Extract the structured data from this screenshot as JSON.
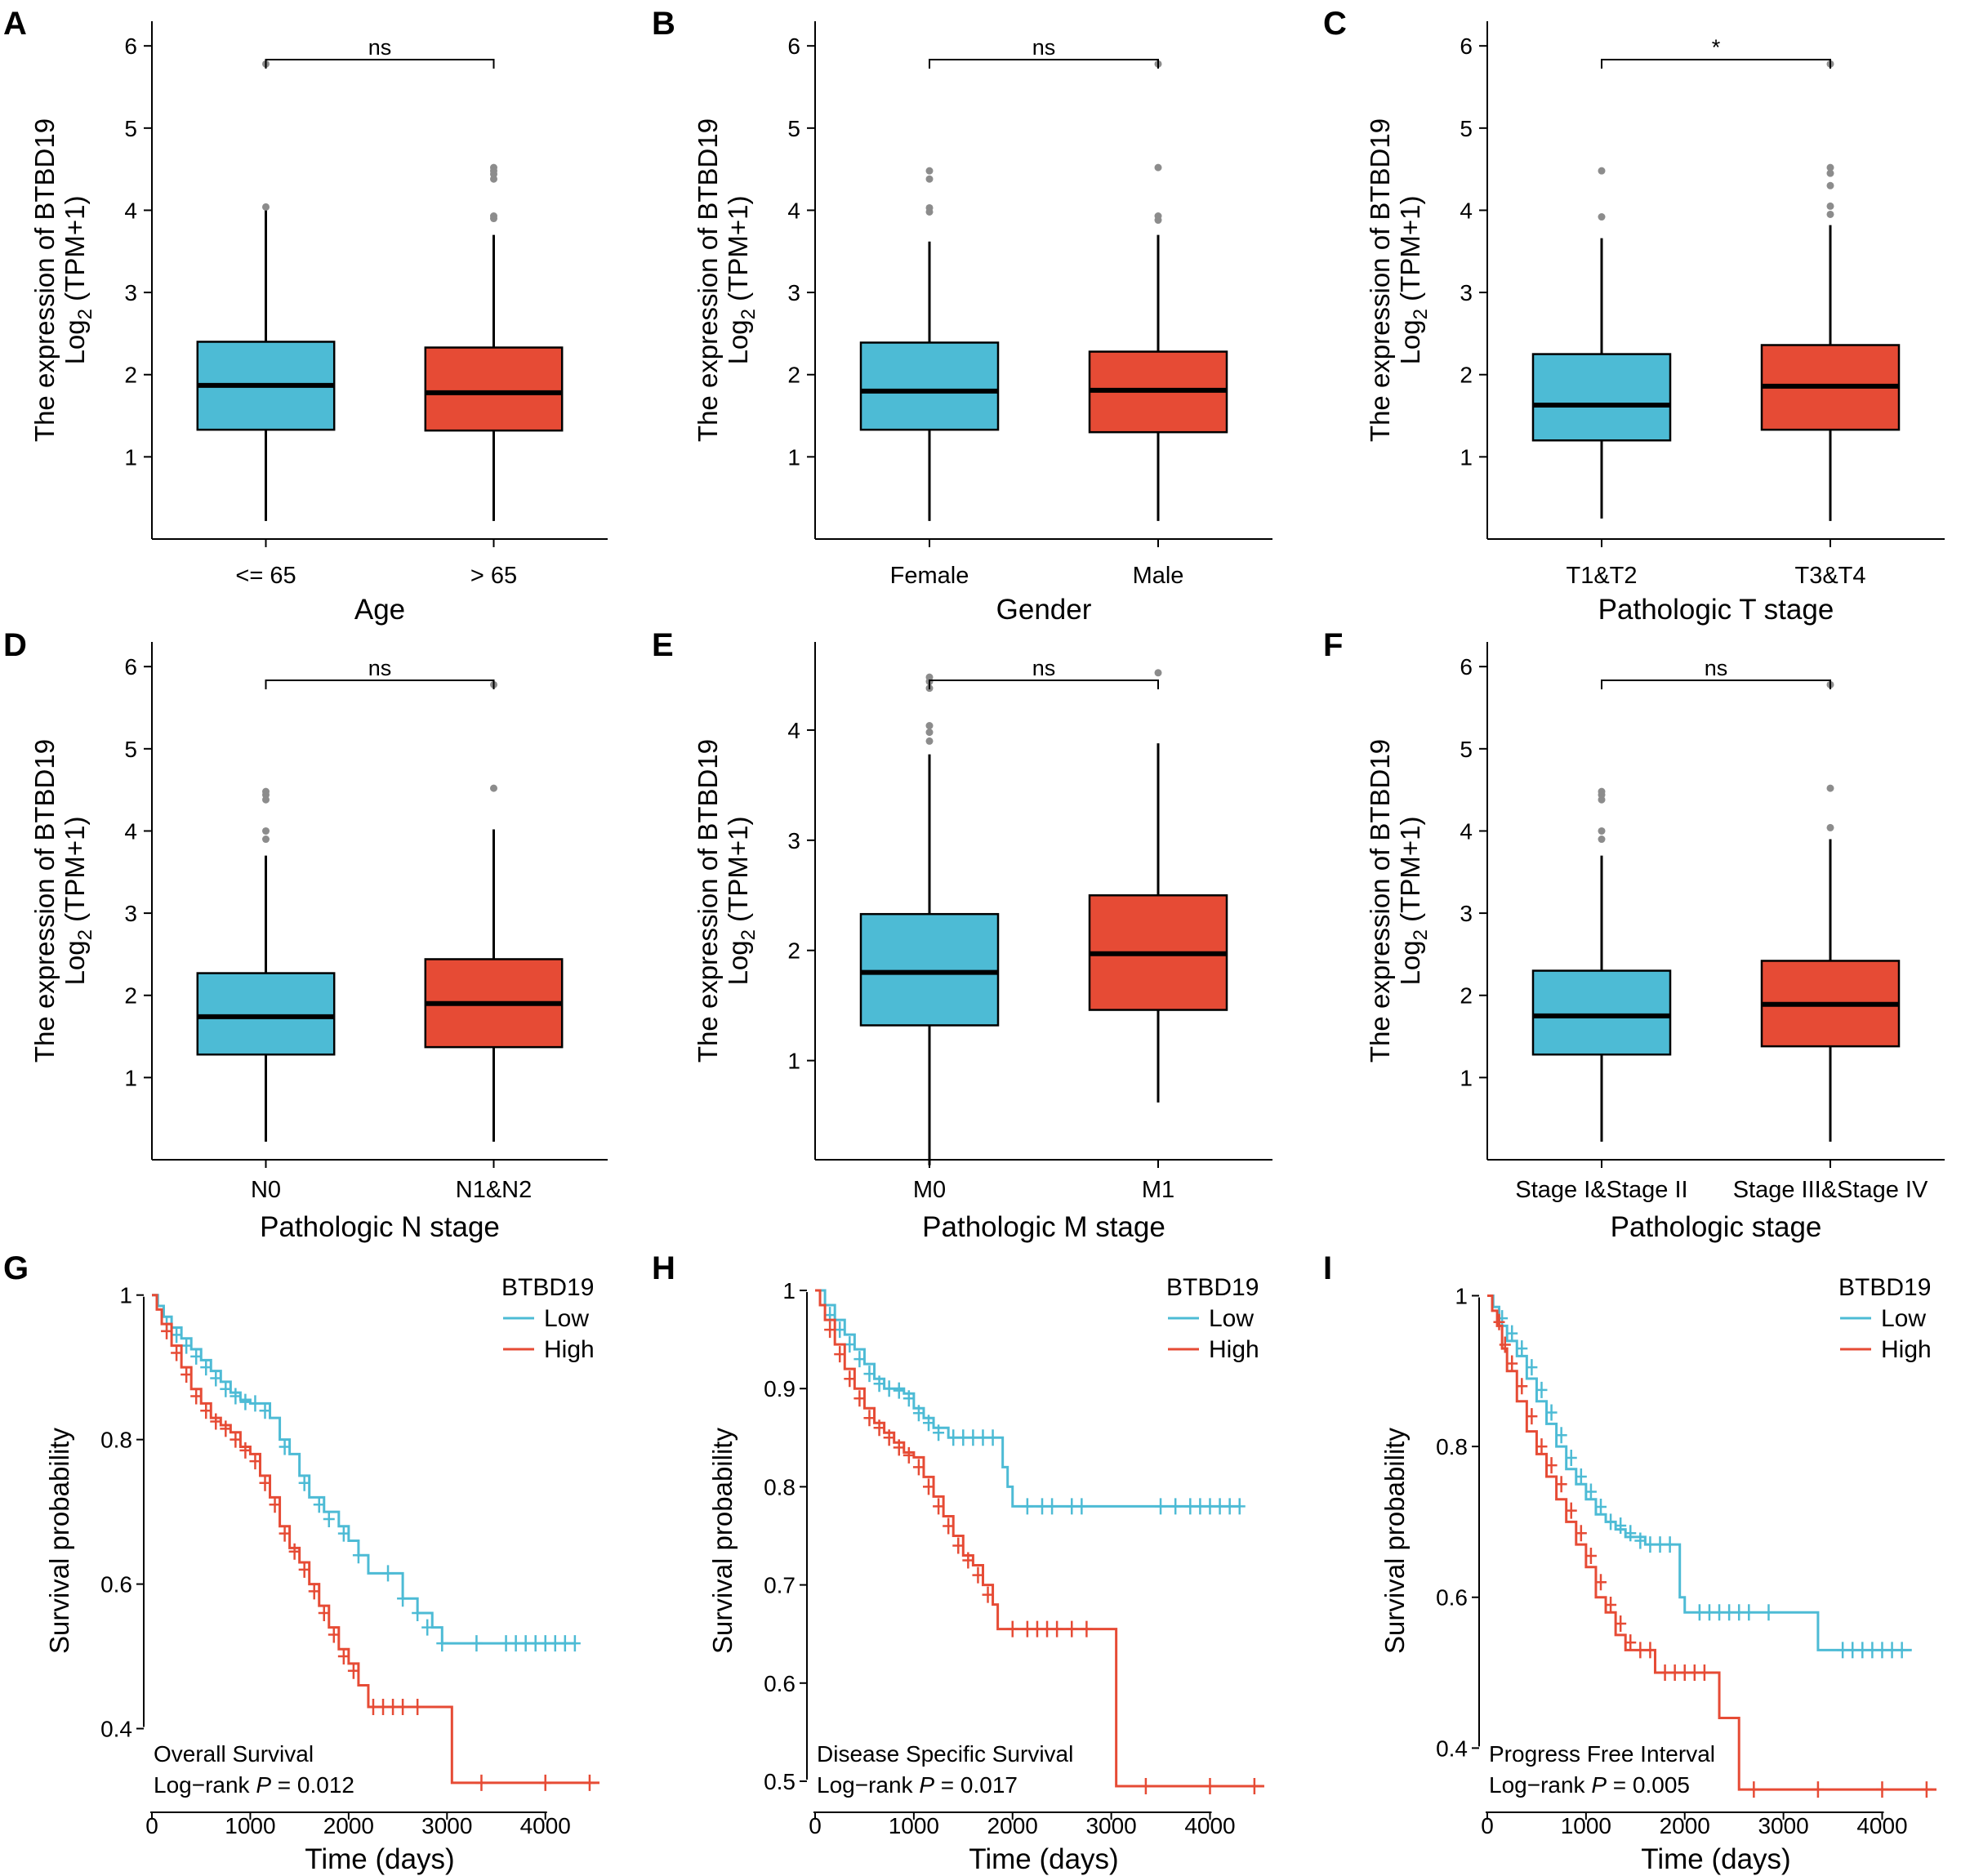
{
  "colors": {
    "low": "#4dbbd5",
    "high": "#e64b35",
    "outlier": "#8c8c8c",
    "axis": "#000000"
  },
  "ylabel_line1": "The expression of BTBD19",
  "ylabel_line2_main": "Log",
  "ylabel_line2_sub": "2",
  "ylabel_line2_rest": " (TPM+1)",
  "chart_data": [
    {
      "id": "A",
      "type": "box",
      "xlabel": "Age",
      "ylim": [
        0,
        6.3
      ],
      "yticks": [
        1,
        2,
        3,
        4,
        5,
        6
      ],
      "sig": "ns",
      "groups": [
        {
          "label": "<= 65",
          "color": "low",
          "min": 0.22,
          "q1": 1.33,
          "median": 1.87,
          "q3": 2.4,
          "max": 4.02,
          "outliers": [
            4.04,
            5.78
          ]
        },
        {
          "label": "> 65",
          "color": "high",
          "min": 0.22,
          "q1": 1.32,
          "median": 1.78,
          "q3": 2.33,
          "max": 3.7,
          "outliers": [
            3.9,
            3.93,
            4.38,
            4.44,
            4.48,
            4.52
          ]
        }
      ]
    },
    {
      "id": "B",
      "type": "box",
      "xlabel": "Gender",
      "ylim": [
        0,
        6.3
      ],
      "yticks": [
        1,
        2,
        3,
        4,
        5,
        6
      ],
      "sig": "ns",
      "groups": [
        {
          "label": "Female",
          "color": "low",
          "min": 0.22,
          "q1": 1.33,
          "median": 1.8,
          "q3": 2.39,
          "max": 3.62,
          "outliers": [
            3.98,
            4.03,
            4.38,
            4.48
          ]
        },
        {
          "label": "Male",
          "color": "high",
          "min": 0.22,
          "q1": 1.3,
          "median": 1.81,
          "q3": 2.28,
          "max": 3.7,
          "outliers": [
            3.88,
            3.93,
            4.52,
            5.78
          ]
        }
      ]
    },
    {
      "id": "C",
      "type": "box",
      "xlabel": "Pathologic T stage",
      "ylim": [
        0,
        6.3
      ],
      "yticks": [
        1,
        2,
        3,
        4,
        5,
        6
      ],
      "sig": "*",
      "groups": [
        {
          "label": "T1&T2",
          "color": "low",
          "min": 0.25,
          "q1": 1.2,
          "median": 1.63,
          "q3": 2.25,
          "max": 3.66,
          "outliers": [
            3.92,
            4.48
          ]
        },
        {
          "label": "T3&T4",
          "color": "high",
          "min": 0.22,
          "q1": 1.33,
          "median": 1.86,
          "q3": 2.36,
          "max": 3.82,
          "outliers": [
            3.95,
            4.05,
            4.3,
            4.45,
            4.52,
            5.78
          ]
        }
      ]
    },
    {
      "id": "D",
      "type": "box",
      "xlabel": "Pathologic N stage",
      "ylim": [
        0,
        6.3
      ],
      "yticks": [
        1,
        2,
        3,
        4,
        5,
        6
      ],
      "sig": "ns",
      "groups": [
        {
          "label": "N0",
          "color": "low",
          "min": 0.22,
          "q1": 1.28,
          "median": 1.74,
          "q3": 2.27,
          "max": 3.7,
          "outliers": [
            3.9,
            4.0,
            4.38,
            4.44,
            4.48
          ]
        },
        {
          "label": "N1&N2",
          "color": "high",
          "min": 0.22,
          "q1": 1.37,
          "median": 1.9,
          "q3": 2.44,
          "max": 4.02,
          "outliers": [
            4.52,
            5.78
          ]
        }
      ]
    },
    {
      "id": "E",
      "type": "box",
      "xlabel": "Pathologic M stage",
      "ylim": [
        0.1,
        4.8
      ],
      "yticks": [
        1,
        2,
        3,
        4
      ],
      "sig": "ns",
      "groups": [
        {
          "label": "M0",
          "color": "low",
          "min": 0.05,
          "q1": 1.32,
          "median": 1.8,
          "q3": 2.33,
          "max": 3.78,
          "outliers": [
            3.9,
            3.98,
            4.04,
            4.38,
            4.44,
            4.48
          ]
        },
        {
          "label": "M1",
          "color": "high",
          "min": 0.62,
          "q1": 1.46,
          "median": 1.97,
          "q3": 2.5,
          "max": 3.88,
          "outliers": [
            4.52
          ]
        }
      ]
    },
    {
      "id": "F",
      "type": "box",
      "xlabel": "Pathologic stage",
      "ylim": [
        0,
        6.3
      ],
      "yticks": [
        1,
        2,
        3,
        4,
        5,
        6
      ],
      "sig": "ns",
      "groups": [
        {
          "label": "Stage I&Stage II",
          "color": "low",
          "min": 0.22,
          "q1": 1.28,
          "median": 1.75,
          "q3": 2.3,
          "max": 3.7,
          "outliers": [
            3.9,
            4.0,
            4.38,
            4.44,
            4.48
          ]
        },
        {
          "label": "Stage III&Stage IV",
          "color": "high",
          "min": 0.22,
          "q1": 1.38,
          "median": 1.89,
          "q3": 2.42,
          "max": 3.9,
          "outliers": [
            4.04,
            4.52,
            5.78
          ]
        }
      ]
    },
    {
      "id": "G",
      "type": "line",
      "subtype": "kaplan-meier",
      "xlabel": "Time (days)",
      "ylabel": "Survival probability",
      "xlim": [
        0,
        4600
      ],
      "ylim": [
        0.3,
        1.02
      ],
      "xticks": [
        0,
        1000,
        2000,
        3000,
        4000
      ],
      "yticks": [
        0.4,
        0.6,
        0.8,
        1.0
      ],
      "legend_title": "BTBD19",
      "legend_position": "top-right",
      "annotation_title": "Overall Survival",
      "pvalue_prefix": "Log−rank ",
      "pvalue_p": "P",
      "pvalue_rest": " = 0.012",
      "series": [
        {
          "name": "Low",
          "color": "low",
          "x": [
            0,
            60,
            120,
            200,
            300,
            400,
            500,
            600,
            700,
            800,
            900,
            1000,
            1080,
            1200,
            1300,
            1400,
            1500,
            1600,
            1750,
            1900,
            2000,
            2100,
            2200,
            2400,
            2550,
            2700,
            2850,
            2950,
            4300
          ],
          "y": [
            1.0,
            0.985,
            0.97,
            0.955,
            0.94,
            0.925,
            0.91,
            0.895,
            0.88,
            0.865,
            0.855,
            0.85,
            0.85,
            0.83,
            0.8,
            0.78,
            0.75,
            0.72,
            0.7,
            0.68,
            0.66,
            0.64,
            0.615,
            0.615,
            0.58,
            0.56,
            0.54,
            0.518,
            0.518
          ],
          "censor_x": [
            150,
            250,
            350,
            450,
            550,
            650,
            750,
            850,
            950,
            1050,
            1150,
            1350,
            1550,
            1700,
            1800,
            1950,
            2100,
            2400,
            2550,
            2700,
            2800,
            2950,
            3300,
            3600,
            3700,
            3800,
            3900,
            4000,
            4100,
            4200,
            4300
          ],
          "censor_y": [
            0.96,
            0.945,
            0.93,
            0.915,
            0.9,
            0.885,
            0.87,
            0.86,
            0.852,
            0.85,
            0.84,
            0.79,
            0.74,
            0.71,
            0.69,
            0.67,
            0.64,
            0.615,
            0.58,
            0.56,
            0.54,
            0.518,
            0.518,
            0.518,
            0.518,
            0.518,
            0.518,
            0.518,
            0.518,
            0.518,
            0.518
          ]
        },
        {
          "name": "High",
          "color": "high",
          "x": [
            0,
            50,
            100,
            200,
            300,
            400,
            500,
            600,
            700,
            800,
            900,
            1000,
            1100,
            1200,
            1300,
            1400,
            1500,
            1600,
            1700,
            1800,
            1900,
            2000,
            2100,
            2200,
            2400,
            2700,
            3050,
            4550
          ],
          "y": [
            1.0,
            0.98,
            0.96,
            0.93,
            0.9,
            0.87,
            0.85,
            0.83,
            0.82,
            0.81,
            0.79,
            0.78,
            0.75,
            0.72,
            0.68,
            0.65,
            0.63,
            0.6,
            0.57,
            0.54,
            0.51,
            0.49,
            0.46,
            0.43,
            0.43,
            0.43,
            0.325,
            0.325
          ],
          "censor_x": [
            150,
            250,
            350,
            450,
            550,
            650,
            750,
            850,
            950,
            1050,
            1150,
            1250,
            1350,
            1450,
            1550,
            1650,
            1750,
            1850,
            1950,
            2050,
            2250,
            2350,
            2450,
            2550,
            2700,
            3350,
            4000,
            4450
          ],
          "censor_y": [
            0.95,
            0.92,
            0.89,
            0.86,
            0.84,
            0.825,
            0.815,
            0.8,
            0.785,
            0.77,
            0.74,
            0.71,
            0.67,
            0.645,
            0.62,
            0.59,
            0.56,
            0.53,
            0.5,
            0.48,
            0.43,
            0.43,
            0.43,
            0.43,
            0.43,
            0.325,
            0.325,
            0.325
          ]
        }
      ]
    },
    {
      "id": "H",
      "type": "line",
      "subtype": "kaplan-meier",
      "xlabel": "Time (days)",
      "ylabel": "Survival probability",
      "xlim": [
        0,
        4600
      ],
      "ylim": [
        0.48,
        1.01
      ],
      "xticks": [
        0,
        1000,
        2000,
        3000,
        4000
      ],
      "yticks": [
        0.5,
        0.6,
        0.7,
        0.8,
        0.9,
        1.0
      ],
      "legend_title": "BTBD19",
      "legend_position": "top-right",
      "annotation_title": "Disease Specific Survival",
      "pvalue_prefix": "Log−rank ",
      "pvalue_p": "P",
      "pvalue_rest": " = 0.017",
      "series": [
        {
          "name": "Low",
          "color": "low",
          "x": [
            0,
            100,
            200,
            300,
            400,
            500,
            600,
            700,
            800,
            900,
            1000,
            1100,
            1200,
            1350,
            1900,
            1950,
            2000,
            4300
          ],
          "y": [
            1.0,
            0.985,
            0.97,
            0.955,
            0.94,
            0.925,
            0.91,
            0.9,
            0.9,
            0.895,
            0.88,
            0.87,
            0.86,
            0.85,
            0.82,
            0.8,
            0.78,
            0.78
          ],
          "censor_x": [
            150,
            250,
            350,
            450,
            550,
            650,
            750,
            850,
            950,
            1050,
            1150,
            1250,
            1400,
            1500,
            1600,
            1700,
            1800,
            2150,
            2300,
            2400,
            2600,
            2700,
            3500,
            3650,
            3800,
            3900,
            4000,
            4100,
            4200,
            4300
          ],
          "censor_y": [
            0.975,
            0.96,
            0.945,
            0.93,
            0.915,
            0.905,
            0.9,
            0.898,
            0.89,
            0.875,
            0.865,
            0.855,
            0.85,
            0.85,
            0.85,
            0.85,
            0.85,
            0.78,
            0.78,
            0.78,
            0.78,
            0.78,
            0.78,
            0.78,
            0.78,
            0.78,
            0.78,
            0.78,
            0.78,
            0.78
          ]
        },
        {
          "name": "High",
          "color": "high",
          "x": [
            0,
            50,
            100,
            200,
            300,
            400,
            500,
            600,
            700,
            800,
            900,
            1000,
            1100,
            1200,
            1300,
            1400,
            1500,
            1600,
            1700,
            1800,
            1850,
            3050,
            4550
          ],
          "y": [
            1.0,
            0.985,
            0.97,
            0.945,
            0.92,
            0.9,
            0.88,
            0.865,
            0.855,
            0.845,
            0.835,
            0.83,
            0.81,
            0.79,
            0.77,
            0.75,
            0.73,
            0.72,
            0.7,
            0.68,
            0.655,
            0.495,
            0.495
          ],
          "censor_x": [
            150,
            250,
            350,
            450,
            550,
            650,
            750,
            850,
            950,
            1050,
            1150,
            1250,
            1350,
            1450,
            1550,
            1650,
            1750,
            2000,
            2150,
            2250,
            2350,
            2450,
            2600,
            2750,
            3350,
            4000,
            4450
          ],
          "censor_y": [
            0.96,
            0.935,
            0.91,
            0.89,
            0.87,
            0.86,
            0.85,
            0.84,
            0.832,
            0.82,
            0.8,
            0.78,
            0.76,
            0.74,
            0.725,
            0.71,
            0.69,
            0.655,
            0.655,
            0.655,
            0.655,
            0.655,
            0.655,
            0.655,
            0.495,
            0.495,
            0.495
          ]
        }
      ]
    },
    {
      "id": "I",
      "type": "line",
      "subtype": "kaplan-meier",
      "xlabel": "Time (days)",
      "ylabel": "Survival probability",
      "xlim": [
        0,
        4600
      ],
      "ylim": [
        0.33,
        1.02
      ],
      "xticks": [
        0,
        1000,
        2000,
        3000,
        4000
      ],
      "yticks": [
        0.4,
        0.6,
        0.8,
        1.0
      ],
      "legend_title": "BTBD19",
      "legend_position": "top-right",
      "annotation_title": "Progress Free Interval",
      "pvalue_prefix": "Log−rank ",
      "pvalue_p": "P",
      "pvalue_rest": " = 0.005",
      "series": [
        {
          "name": "Low",
          "color": "low",
          "x": [
            0,
            60,
            120,
            200,
            300,
            400,
            500,
            600,
            700,
            800,
            900,
            1000,
            1100,
            1200,
            1300,
            1400,
            1600,
            1950,
            2000,
            3350,
            4300
          ],
          "y": [
            1.0,
            0.985,
            0.96,
            0.94,
            0.92,
            0.89,
            0.86,
            0.83,
            0.8,
            0.77,
            0.75,
            0.73,
            0.71,
            0.7,
            0.69,
            0.68,
            0.67,
            0.6,
            0.58,
            0.53,
            0.53
          ],
          "censor_x": [
            150,
            250,
            350,
            450,
            550,
            650,
            750,
            850,
            950,
            1050,
            1150,
            1250,
            1350,
            1450,
            1550,
            1650,
            1750,
            1850,
            2150,
            2250,
            2350,
            2450,
            2550,
            2650,
            2850,
            3600,
            3700,
            3800,
            3900,
            4000,
            4100,
            4200
          ],
          "censor_y": [
            0.97,
            0.95,
            0.93,
            0.905,
            0.875,
            0.845,
            0.815,
            0.785,
            0.76,
            0.74,
            0.72,
            0.7,
            0.695,
            0.685,
            0.675,
            0.67,
            0.67,
            0.67,
            0.58,
            0.58,
            0.58,
            0.58,
            0.58,
            0.58,
            0.58,
            0.53,
            0.53,
            0.53,
            0.53,
            0.53,
            0.53,
            0.53
          ]
        },
        {
          "name": "High",
          "color": "high",
          "x": [
            0,
            50,
            100,
            150,
            200,
            300,
            400,
            500,
            600,
            700,
            800,
            900,
            1000,
            1100,
            1200,
            1300,
            1400,
            1500,
            1700,
            2250,
            2350,
            2550,
            4550
          ],
          "y": [
            1.0,
            0.98,
            0.96,
            0.93,
            0.9,
            0.86,
            0.82,
            0.79,
            0.76,
            0.73,
            0.7,
            0.67,
            0.64,
            0.6,
            0.58,
            0.55,
            0.53,
            0.53,
            0.5,
            0.5,
            0.44,
            0.345,
            0.345
          ],
          "censor_x": [
            120,
            180,
            250,
            350,
            450,
            550,
            650,
            750,
            850,
            950,
            1050,
            1150,
            1250,
            1350,
            1450,
            1550,
            1650,
            1800,
            1900,
            2000,
            2100,
            2200,
            2700,
            3350,
            4000,
            4450
          ],
          "censor_y": [
            0.965,
            0.935,
            0.91,
            0.88,
            0.84,
            0.8,
            0.775,
            0.75,
            0.715,
            0.685,
            0.655,
            0.62,
            0.59,
            0.565,
            0.54,
            0.53,
            0.53,
            0.5,
            0.5,
            0.5,
            0.5,
            0.5,
            0.345,
            0.345,
            0.345,
            0.345
          ]
        }
      ]
    }
  ]
}
